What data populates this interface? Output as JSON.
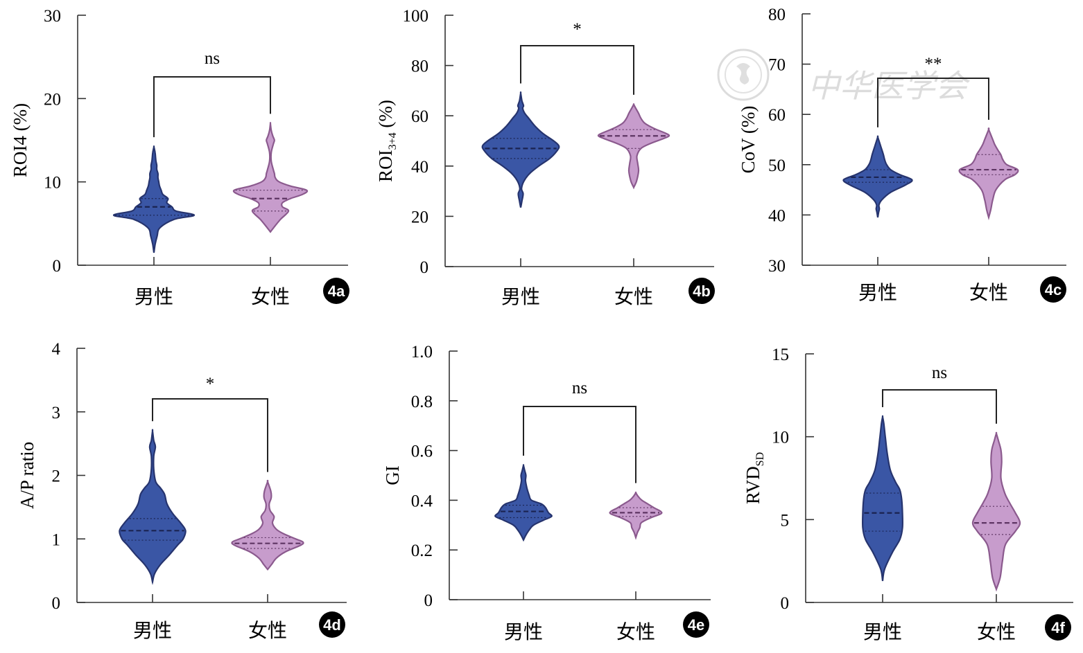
{
  "colors": {
    "male_fill": "#3a56a5",
    "male_edge": "#26346e",
    "female_fill": "#c79ccc",
    "female_edge": "#8b5a8e",
    "axis": "#333333"
  },
  "watermark": {
    "text": "中华医学会"
  },
  "chart_data": [
    {
      "id": "4a",
      "type": "violin",
      "badge": "4a",
      "ylabel": "ROI4 (%)",
      "ylabel_sub": "",
      "yticks": [
        "0",
        "10",
        "20",
        "30"
      ],
      "ylim": [
        0,
        30
      ],
      "categories": [
        "男性",
        "女性"
      ],
      "significance": "ns",
      "series": [
        {
          "category": "男性",
          "min": 1.5,
          "max": 14.2,
          "q1": 6.0,
          "median": 7.0,
          "q3": 8.0,
          "density": [
            [
              1.5,
              0
            ],
            [
              2.5,
              0.03
            ],
            [
              3.5,
              0.08
            ],
            [
              4.5,
              0.15
            ],
            [
              5.5,
              0.5
            ],
            [
              6.0,
              1.0
            ],
            [
              6.5,
              0.55
            ],
            [
              7.0,
              0.45
            ],
            [
              7.5,
              0.32
            ],
            [
              8.0,
              0.35
            ],
            [
              8.5,
              0.22
            ],
            [
              9.0,
              0.18
            ],
            [
              9.5,
              0.14
            ],
            [
              10.0,
              0.12
            ],
            [
              10.5,
              0.1
            ],
            [
              11,
              0.1
            ],
            [
              11.5,
              0.07
            ],
            [
              12,
              0.07
            ],
            [
              12.5,
              0.05
            ],
            [
              13,
              0.04
            ],
            [
              13.5,
              0.03
            ],
            [
              14.2,
              0
            ]
          ]
        },
        {
          "category": "女性",
          "min": 4.0,
          "max": 17.0,
          "q1": 6.5,
          "median": 8.0,
          "q3": 9.0,
          "density": [
            [
              4.0,
              0
            ],
            [
              4.5,
              0.08
            ],
            [
              5.5,
              0.25
            ],
            [
              6.5,
              0.45
            ],
            [
              7.0,
              0.3
            ],
            [
              7.5,
              0.3
            ],
            [
              8.0,
              0.5
            ],
            [
              8.5,
              0.8
            ],
            [
              9.0,
              0.9
            ],
            [
              9.5,
              0.5
            ],
            [
              10.0,
              0.22
            ],
            [
              10.5,
              0.12
            ],
            [
              11.0,
              0.1
            ],
            [
              11.5,
              0.07
            ],
            [
              12.5,
              0.02
            ],
            [
              13.5,
              0.02
            ],
            [
              14.5,
              0.07
            ],
            [
              15,
              0.1
            ],
            [
              15.5,
              0.06
            ],
            [
              16.2,
              0.02
            ],
            [
              17.0,
              0
            ]
          ]
        }
      ]
    },
    {
      "id": "4b",
      "type": "violin",
      "badge": "4b",
      "ylabel": "ROI",
      "ylabel_sub": "3+4",
      "ylabel_tail": " (%)",
      "yticks": [
        "0",
        "20",
        "40",
        "60",
        "80",
        "100"
      ],
      "ylim": [
        0,
        100
      ],
      "categories": [
        "男性",
        "女性"
      ],
      "significance": "*",
      "series": [
        {
          "category": "男性",
          "min": 23.5,
          "max": 69.0,
          "q1": 43.0,
          "median": 47.0,
          "q3": 51.0,
          "density": [
            [
              23.5,
              0
            ],
            [
              26,
              0.03
            ],
            [
              29,
              0.06
            ],
            [
              31,
              0.02
            ],
            [
              34,
              0.08
            ],
            [
              37,
              0.22
            ],
            [
              40,
              0.45
            ],
            [
              43,
              0.72
            ],
            [
              46,
              0.9
            ],
            [
              48,
              0.95
            ],
            [
              50,
              0.82
            ],
            [
              53,
              0.55
            ],
            [
              56,
              0.35
            ],
            [
              59,
              0.2
            ],
            [
              61,
              0.1
            ],
            [
              63,
              0.05
            ],
            [
              64,
              0.07
            ],
            [
              66,
              0.03
            ],
            [
              69,
              0
            ]
          ]
        },
        {
          "category": "女性",
          "min": 31.5,
          "max": 64.5,
          "q1": 47.0,
          "median": 52.0,
          "q3": 54.5,
          "density": [
            [
              31.5,
              0
            ],
            [
              34,
              0.07
            ],
            [
              38,
              0.12
            ],
            [
              41,
              0.1
            ],
            [
              44,
              0.08
            ],
            [
              47,
              0.18
            ],
            [
              49,
              0.42
            ],
            [
              51,
              0.75
            ],
            [
              52,
              0.88
            ],
            [
              53,
              0.8
            ],
            [
              55,
              0.5
            ],
            [
              57,
              0.28
            ],
            [
              59,
              0.18
            ],
            [
              61,
              0.12
            ],
            [
              63,
              0.05
            ],
            [
              64.5,
              0
            ]
          ]
        }
      ]
    },
    {
      "id": "4c",
      "type": "violin",
      "badge": "4c",
      "ylabel": "CoV (%)",
      "ylabel_sub": "",
      "yticks": [
        "30",
        "40",
        "50",
        "60",
        "70",
        "80"
      ],
      "ylim": [
        30,
        80
      ],
      "categories": [
        "男性",
        "女性"
      ],
      "significance": "**",
      "series": [
        {
          "category": "男性",
          "min": 39.5,
          "max": 55.5,
          "q1": 46.5,
          "median": 47.5,
          "q3": 49.0,
          "density": [
            [
              39.5,
              0
            ],
            [
              40.5,
              0.02
            ],
            [
              41.2,
              0.04
            ],
            [
              42,
              0.03
            ],
            [
              43,
              0.1
            ],
            [
              44.5,
              0.32
            ],
            [
              46,
              0.7
            ],
            [
              47,
              0.85
            ],
            [
              48,
              0.55
            ],
            [
              49,
              0.32
            ],
            [
              50,
              0.22
            ],
            [
              51,
              0.17
            ],
            [
              52,
              0.14
            ],
            [
              53,
              0.1
            ],
            [
              54,
              0.06
            ],
            [
              55.5,
              0
            ]
          ]
        },
        {
          "category": "女性",
          "min": 39.5,
          "max": 57.0,
          "q1": 48.0,
          "median": 49.0,
          "q3": 52.0,
          "density": [
            [
              39.5,
              0
            ],
            [
              41,
              0.05
            ],
            [
              43,
              0.1
            ],
            [
              45,
              0.18
            ],
            [
              47,
              0.4
            ],
            [
              48,
              0.65
            ],
            [
              49,
              0.72
            ],
            [
              50,
              0.45
            ],
            [
              51,
              0.35
            ],
            [
              52,
              0.3
            ],
            [
              53,
              0.22
            ],
            [
              54,
              0.15
            ],
            [
              55,
              0.1
            ],
            [
              57,
              0
            ]
          ]
        }
      ]
    },
    {
      "id": "4d",
      "type": "violin",
      "badge": "4d",
      "ylabel": "A/P ratio",
      "ylabel_sub": "",
      "yticks": [
        "0",
        "1",
        "2",
        "3",
        "4"
      ],
      "ylim": [
        0,
        4
      ],
      "categories": [
        "男性",
        "女性"
      ],
      "significance": "*",
      "series": [
        {
          "category": "男性",
          "min": 0.32,
          "max": 2.7,
          "q1": 0.98,
          "median": 1.13,
          "q3": 1.32,
          "density": [
            [
              0.32,
              0
            ],
            [
              0.45,
              0.05
            ],
            [
              0.6,
              0.2
            ],
            [
              0.75,
              0.42
            ],
            [
              0.9,
              0.62
            ],
            [
              1.0,
              0.76
            ],
            [
              1.13,
              0.82
            ],
            [
              1.25,
              0.7
            ],
            [
              1.4,
              0.5
            ],
            [
              1.55,
              0.36
            ],
            [
              1.7,
              0.3
            ],
            [
              1.8,
              0.2
            ],
            [
              1.9,
              0.08
            ],
            [
              2.1,
              0.03
            ],
            [
              2.3,
              0.03
            ],
            [
              2.45,
              0.07
            ],
            [
              2.55,
              0.03
            ],
            [
              2.7,
              0
            ]
          ]
        },
        {
          "category": "女性",
          "min": 0.52,
          "max": 1.9,
          "q1": 0.85,
          "median": 0.93,
          "q3": 1.02,
          "density": [
            [
              0.52,
              0
            ],
            [
              0.6,
              0.1
            ],
            [
              0.7,
              0.22
            ],
            [
              0.8,
              0.45
            ],
            [
              0.9,
              0.82
            ],
            [
              0.95,
              0.88
            ],
            [
              1.0,
              0.7
            ],
            [
              1.08,
              0.4
            ],
            [
              1.15,
              0.22
            ],
            [
              1.25,
              0.12
            ],
            [
              1.35,
              0.16
            ],
            [
              1.45,
              0.06
            ],
            [
              1.55,
              0.04
            ],
            [
              1.65,
              0.09
            ],
            [
              1.75,
              0.08
            ],
            [
              1.9,
              0
            ]
          ]
        }
      ]
    },
    {
      "id": "4e",
      "type": "violin",
      "badge": "4e",
      "ylabel": "GI",
      "ylabel_sub": "",
      "yticks": [
        "0",
        "0.2",
        "0.4",
        "0.6",
        "0.8",
        "1.0"
      ],
      "ylim": [
        0,
        1
      ],
      "categories": [
        "男性",
        "女性"
      ],
      "significance": "ns",
      "series": [
        {
          "category": "男性",
          "min": 0.24,
          "max": 0.54,
          "q1": 0.33,
          "median": 0.355,
          "q3": 0.38,
          "density": [
            [
              0.24,
              0
            ],
            [
              0.26,
              0.06
            ],
            [
              0.28,
              0.14
            ],
            [
              0.3,
              0.25
            ],
            [
              0.32,
              0.5
            ],
            [
              0.335,
              0.7
            ],
            [
              0.35,
              0.62
            ],
            [
              0.37,
              0.55
            ],
            [
              0.385,
              0.45
            ],
            [
              0.4,
              0.2
            ],
            [
              0.42,
              0.14
            ],
            [
              0.44,
              0.1
            ],
            [
              0.46,
              0.07
            ],
            [
              0.48,
              0.05
            ],
            [
              0.5,
              0.06
            ],
            [
              0.52,
              0.03
            ],
            [
              0.54,
              0
            ]
          ]
        },
        {
          "category": "女性",
          "min": 0.25,
          "max": 0.43,
          "q1": 0.335,
          "median": 0.35,
          "q3": 0.37,
          "density": [
            [
              0.25,
              0
            ],
            [
              0.27,
              0.04
            ],
            [
              0.29,
              0.1
            ],
            [
              0.31,
              0.14
            ],
            [
              0.33,
              0.38
            ],
            [
              0.345,
              0.62
            ],
            [
              0.355,
              0.62
            ],
            [
              0.37,
              0.45
            ],
            [
              0.385,
              0.3
            ],
            [
              0.4,
              0.15
            ],
            [
              0.415,
              0.06
            ],
            [
              0.43,
              0
            ]
          ]
        }
      ]
    },
    {
      "id": "4f",
      "type": "violin",
      "badge": "4f",
      "ylabel": "RVD",
      "ylabel_sub": "SD",
      "yticks": [
        "0",
        "5",
        "10",
        "15"
      ],
      "ylim": [
        0,
        15
      ],
      "categories": [
        "男性",
        "女性"
      ],
      "significance": "ns",
      "series": [
        {
          "category": "男性",
          "min": 1.3,
          "max": 11.2,
          "q1": 4.3,
          "median": 5.4,
          "q3": 6.6,
          "density": [
            [
              1.3,
              0
            ],
            [
              2,
              0.05
            ],
            [
              3,
              0.25
            ],
            [
              3.8,
              0.45
            ],
            [
              4.5,
              0.52
            ],
            [
              5.4,
              0.52
            ],
            [
              6.2,
              0.5
            ],
            [
              6.8,
              0.45
            ],
            [
              7.3,
              0.33
            ],
            [
              8,
              0.2
            ],
            [
              9,
              0.12
            ],
            [
              10,
              0.07
            ],
            [
              10.8,
              0.03
            ],
            [
              11.2,
              0
            ]
          ]
        },
        {
          "category": "女性",
          "min": 0.8,
          "max": 10.2,
          "q1": 4.1,
          "median": 4.8,
          "q3": 5.8,
          "density": [
            [
              0.8,
              0
            ],
            [
              1.5,
              0.1
            ],
            [
              2.5,
              0.16
            ],
            [
              3.5,
              0.24
            ],
            [
              4.3,
              0.5
            ],
            [
              4.8,
              0.62
            ],
            [
              5.4,
              0.5
            ],
            [
              6,
              0.35
            ],
            [
              6.6,
              0.22
            ],
            [
              7.5,
              0.12
            ],
            [
              8.5,
              0.14
            ],
            [
              9.2,
              0.12
            ],
            [
              9.8,
              0.05
            ],
            [
              10.2,
              0
            ]
          ]
        }
      ]
    }
  ]
}
